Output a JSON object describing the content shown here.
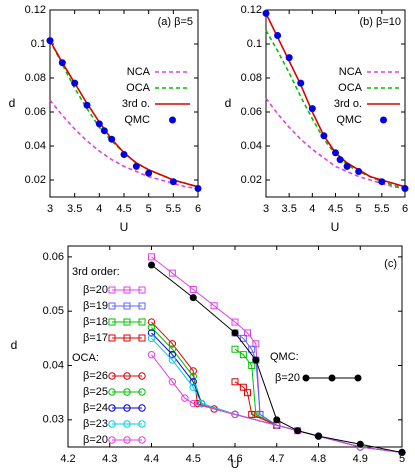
{
  "chart_data": [
    {
      "type": "line",
      "title": "(a) β=5",
      "xlabel": "U",
      "ylabel": "d",
      "xlim": [
        3,
        6
      ],
      "ylim": [
        0.01,
        0.12
      ],
      "xticks": [
        3,
        3.5,
        4,
        4.5,
        5,
        5.5,
        6
      ],
      "yticks": [
        0.02,
        0.04,
        0.06,
        0.08,
        0.1,
        0.12
      ],
      "series": [
        {
          "name": "NCA",
          "color": "#e040e0",
          "line": "dashed",
          "marker": "none",
          "x": [
            3,
            3.25,
            3.5,
            3.75,
            4,
            4.25,
            4.5,
            4.75,
            5,
            5.25,
            5.5,
            5.75,
            6
          ],
          "values": [
            0.067,
            0.058,
            0.05,
            0.043,
            0.037,
            0.032,
            0.028,
            0.025,
            0.022,
            0.02,
            0.018,
            0.016,
            0.015
          ]
        },
        {
          "name": "OCA",
          "color": "#00c000",
          "line": "dashed",
          "marker": "none",
          "x": [
            3,
            3.25,
            3.5,
            3.75,
            4,
            4.25,
            4.5,
            4.75,
            5,
            5.25,
            5.5,
            5.75,
            6
          ],
          "values": [
            0.102,
            0.088,
            0.074,
            0.062,
            0.051,
            0.043,
            0.036,
            0.03,
            0.026,
            0.023,
            0.02,
            0.018,
            0.016
          ]
        },
        {
          "name": "3rd o.",
          "color": "#e00000",
          "line": "solid",
          "marker": "none",
          "x": [
            3,
            3.25,
            3.5,
            3.75,
            4,
            4.25,
            4.5,
            4.75,
            5,
            5.25,
            5.5,
            5.75,
            6
          ],
          "values": [
            0.102,
            0.089,
            0.077,
            0.065,
            0.054,
            0.044,
            0.036,
            0.03,
            0.026,
            0.023,
            0.02,
            0.018,
            0.016
          ]
        },
        {
          "name": "QMC",
          "color": "#0000e0",
          "line": "none",
          "marker": "filled-circle",
          "x": [
            3,
            3.25,
            3.5,
            3.75,
            4,
            4.1,
            4.25,
            4.5,
            4.75,
            5,
            5.5,
            6
          ],
          "values": [
            0.102,
            0.089,
            0.077,
            0.064,
            0.053,
            0.049,
            0.044,
            0.035,
            0.028,
            0.024,
            0.019,
            0.015
          ]
        }
      ]
    },
    {
      "type": "line",
      "title": "(b) β=10",
      "xlabel": "U",
      "ylabel": "d",
      "xlim": [
        3,
        6
      ],
      "ylim": [
        0.01,
        0.12
      ],
      "xticks": [
        3,
        3.5,
        4,
        4.5,
        5,
        5.5,
        6
      ],
      "yticks": [
        0.02,
        0.04,
        0.06,
        0.08,
        0.1,
        0.12
      ],
      "series": [
        {
          "name": "NCA",
          "color": "#e040e0",
          "line": "dashed",
          "marker": "none",
          "x": [
            3,
            3.25,
            3.5,
            3.75,
            4,
            4.25,
            4.5,
            4.75,
            5,
            5.25,
            5.5,
            5.75,
            6
          ],
          "values": [
            0.068,
            0.059,
            0.051,
            0.044,
            0.038,
            0.033,
            0.028,
            0.025,
            0.022,
            0.02,
            0.018,
            0.016,
            0.015
          ]
        },
        {
          "name": "OCA",
          "color": "#00c000",
          "line": "dashed",
          "marker": "none",
          "x": [
            3,
            3.25,
            3.5,
            3.75,
            4,
            4.25,
            4.5,
            4.75,
            5,
            5.25,
            5.5,
            5.75,
            6
          ],
          "values": [
            0.108,
            0.096,
            0.083,
            0.069,
            0.056,
            0.044,
            0.035,
            0.029,
            0.025,
            0.022,
            0.019,
            0.017,
            0.015
          ]
        },
        {
          "name": "3rd o.",
          "color": "#e00000",
          "line": "solid",
          "marker": "none",
          "x": [
            3,
            3.25,
            3.5,
            3.75,
            4,
            4.25,
            4.5,
            4.75,
            5,
            5.25,
            5.5,
            5.75,
            6
          ],
          "values": [
            0.118,
            0.104,
            0.09,
            0.076,
            0.06,
            0.046,
            0.036,
            0.03,
            0.026,
            0.022,
            0.02,
            0.018,
            0.016
          ]
        },
        {
          "name": "QMC",
          "color": "#0000e0",
          "line": "none",
          "marker": "filled-circle",
          "x": [
            3,
            3.25,
            3.5,
            3.75,
            4,
            4.25,
            4.5,
            4.6,
            4.75,
            5,
            5.5,
            6
          ],
          "values": [
            0.118,
            0.105,
            0.092,
            0.077,
            0.062,
            0.046,
            0.036,
            0.032,
            0.028,
            0.025,
            0.019,
            0.015
          ]
        }
      ]
    },
    {
      "type": "line",
      "title": "(c)",
      "xlabel": "U",
      "ylabel": "d",
      "xlim": [
        4.2,
        5
      ],
      "ylim": [
        0.025,
        0.062
      ],
      "xticks": [
        4.2,
        4.3,
        4.4,
        4.5,
        4.6,
        4.7,
        4.8,
        4.9,
        5
      ],
      "yticks": [
        0.03,
        0.04,
        0.05,
        0.06
      ],
      "series_groups": [
        {
          "title": "3rd order:",
          "series": [
            {
              "name": "β=20",
              "color": "#e040e0",
              "line": "solid",
              "marker": "square",
              "x": [
                4.4,
                4.45,
                4.5,
                4.55,
                4.6,
                4.63,
                4.65,
                4.66,
                4.7,
                4.75
              ],
              "values": [
                0.06,
                0.057,
                0.054,
                0.051,
                0.048,
                0.046,
                0.044,
                0.031,
                0.029,
                0.028
              ]
            },
            {
              "name": "β=19",
              "color": "#6060ff",
              "line": "solid",
              "marker": "square",
              "x": [
                4.6,
                4.62,
                4.64,
                4.65,
                4.66,
                4.7
              ],
              "values": [
                0.046,
                0.045,
                0.043,
                0.041,
                0.031,
                0.029
              ]
            },
            {
              "name": "β=18",
              "color": "#00c000",
              "line": "solid",
              "marker": "square",
              "x": [
                4.6,
                4.62,
                4.64,
                4.65,
                4.7
              ],
              "values": [
                0.043,
                0.042,
                0.04,
                0.031,
                0.029
              ]
            },
            {
              "name": "β=17",
              "color": "#e00000",
              "line": "solid",
              "marker": "square",
              "x": [
                4.6,
                4.62,
                4.63,
                4.64,
                4.7
              ],
              "values": [
                0.037,
                0.036,
                0.035,
                0.031,
                0.029
              ]
            }
          ]
        },
        {
          "title": "OCA:",
          "series": [
            {
              "name": "β=26",
              "color": "#e00000",
              "line": "solid",
              "marker": "circle",
              "x": [
                4.4,
                4.45,
                4.5,
                4.51,
                4.55,
                4.6,
                4.7,
                4.8,
                4.9,
                5
              ],
              "values": [
                0.048,
                0.044,
                0.039,
                0.033,
                0.032,
                0.031,
                0.029,
                0.027,
                0.025,
                0.024
              ]
            },
            {
              "name": "β=25",
              "color": "#00c000",
              "line": "solid",
              "marker": "circle",
              "x": [
                4.4,
                4.45,
                4.5,
                4.52,
                4.6,
                4.7,
                4.8,
                4.9,
                5
              ],
              "values": [
                0.047,
                0.043,
                0.038,
                0.033,
                0.031,
                0.029,
                0.027,
                0.025,
                0.024
              ]
            },
            {
              "name": "β=24",
              "color": "#0000e0",
              "line": "solid",
              "marker": "circle",
              "x": [
                4.4,
                4.45,
                4.5,
                4.52,
                4.6,
                4.7,
                4.8,
                4.9,
                5
              ],
              "values": [
                0.046,
                0.042,
                0.037,
                0.033,
                0.031,
                0.029,
                0.027,
                0.025,
                0.024
              ]
            },
            {
              "name": "β=23",
              "color": "#00d0e0",
              "line": "solid",
              "marker": "circle",
              "x": [
                4.4,
                4.45,
                4.5,
                4.52,
                4.6,
                4.7,
                4.8,
                4.9,
                5
              ],
              "values": [
                0.045,
                0.041,
                0.036,
                0.033,
                0.031,
                0.029,
                0.027,
                0.025,
                0.024
              ]
            },
            {
              "name": "β=20",
              "color": "#e040e0",
              "line": "solid",
              "marker": "circle",
              "x": [
                4.4,
                4.45,
                4.48,
                4.5,
                4.6,
                4.7,
                4.8,
                4.9,
                5
              ],
              "values": [
                0.042,
                0.037,
                0.034,
                0.033,
                0.031,
                0.029,
                0.027,
                0.025,
                0.024
              ]
            }
          ]
        },
        {
          "title": "QMC:",
          "series": [
            {
              "name": "β=20",
              "color": "#000000",
              "line": "solid",
              "marker": "filled-circle",
              "x": [
                4.4,
                4.5,
                4.6,
                4.65,
                4.7,
                4.75,
                4.8,
                4.9,
                5
              ],
              "values": [
                0.0585,
                0.0525,
                0.046,
                0.041,
                0.03,
                0.028,
                0.027,
                0.0255,
                0.024
              ]
            }
          ]
        }
      ]
    }
  ]
}
